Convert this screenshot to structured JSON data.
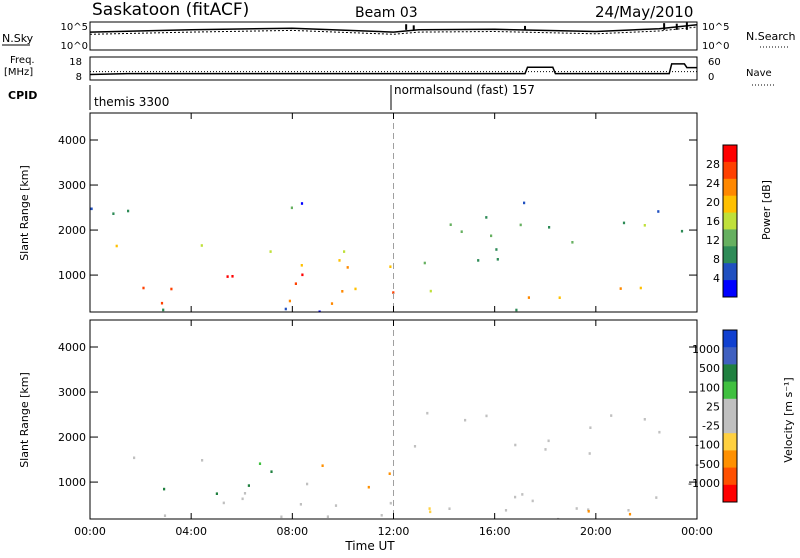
{
  "header": {
    "station": "Saskatoon (fitACF)",
    "beam": "Beam 03",
    "date": "24/May/2010"
  },
  "colors": {
    "power_scale": [
      "#0000ff",
      "#2050c0",
      "#2e8b57",
      "#66b060",
      "#bfe03a",
      "#ffc000",
      "#ff8800",
      "#ff4000",
      "#ff0000"
    ],
    "velocity_scale": [
      "#1040d0",
      "#4060c0",
      "#208040",
      "#40c040",
      "#c0c0c0",
      "#c0c0c0",
      "#ffd040",
      "#ff9000",
      "#ff5000",
      "#ff0000"
    ],
    "marker_line": "#a0a0a0"
  },
  "panels": {
    "sky": {
      "label_left": "N.Sky",
      "label_right": "N.Search",
      "left_ticks": [
        "10^5",
        "10^0"
      ],
      "right_ticks": [
        "10^5",
        "10^0"
      ]
    },
    "freq": {
      "label_left_1": "Freq.",
      "label_left_2": "[MHz]",
      "label_right": "Nave",
      "left_ticks": [
        "18",
        "8"
      ],
      "right_ticks": [
        "60",
        "0"
      ]
    },
    "cpid": {
      "label": "CPID",
      "modes": [
        "themis 3300",
        "normalsound (fast) 157"
      ]
    },
    "power": {
      "colorbar_label": "Power [dB]",
      "colorbar_ticks": [
        "28",
        "24",
        "20",
        "16",
        "12",
        "8",
        "4"
      ]
    },
    "velocity": {
      "colorbar_label": "Velocity [m s⁻¹]",
      "colorbar_ticks": [
        "1000",
        "500",
        "100",
        "25",
        "-25",
        "-100",
        "-500",
        "-1000"
      ]
    }
  },
  "chart_data": {
    "type": "heatmap",
    "title": "Saskatoon (fitACF)",
    "xlabel": "Time UT",
    "ylabel": "Slant Range [km]",
    "x_tick_labels": [
      "00:00",
      "04:00",
      "08:00",
      "12:00",
      "16:00",
      "20:00",
      "00:00"
    ],
    "x_range_hours": [
      0,
      24
    ],
    "y_tick_labels": [
      "1000",
      "2000",
      "3000",
      "4000"
    ],
    "y_range_km": [
      180,
      4600
    ],
    "mode_change_hour": 12,
    "power_range_db": [
      0,
      30
    ],
    "velocity_levels": [
      -1000,
      -500,
      -100,
      -25,
      25,
      100,
      500,
      1000
    ],
    "power_regions": [
      {
        "t0": 0.0,
        "t1": 12.0,
        "r0": 300,
        "r1": 800,
        "db": 22
      },
      {
        "t0": 2.0,
        "t1": 4.5,
        "r0": 500,
        "r1": 800,
        "db": 26
      },
      {
        "t0": 4.0,
        "t1": 9.0,
        "r0": 700,
        "r1": 1500,
        "db": 28
      },
      {
        "t0": 0.0,
        "t1": 4.5,
        "r0": 1500,
        "r1": 1900,
        "db": 14
      },
      {
        "t0": 4.5,
        "t1": 11.0,
        "r0": 1200,
        "r1": 1700,
        "db": 18
      },
      {
        "t0": 9.0,
        "t1": 12.0,
        "r0": 1000,
        "r1": 1500,
        "db": 24
      },
      {
        "t0": 0.0,
        "t1": 3.5,
        "r0": 2300,
        "r1": 3000,
        "db": 6
      },
      {
        "t0": 6.5,
        "t1": 9.5,
        "r0": 2200,
        "r1": 2800,
        "db": 8
      },
      {
        "t0": 12.0,
        "t1": 16.0,
        "r0": 1700,
        "r1": 2700,
        "db": 12
      },
      {
        "t0": 12.3,
        "t1": 17.0,
        "r0": 900,
        "r1": 1600,
        "db": 9
      },
      {
        "t0": 13.0,
        "t1": 18.0,
        "r0": 300,
        "r1": 700,
        "db": 20
      },
      {
        "t0": 16.5,
        "t1": 18.5,
        "r0": 1600,
        "r1": 2800,
        "db": 8
      },
      {
        "t0": 19.0,
        "t1": 22.5,
        "r0": 1500,
        "r1": 2300,
        "db": 11
      },
      {
        "t0": 18.5,
        "t1": 23.5,
        "r0": 400,
        "r1": 900,
        "db": 17
      },
      {
        "t0": 22.0,
        "t1": 24.0,
        "r0": 1900,
        "r1": 2700,
        "db": 6
      },
      {
        "t0": 0.0,
        "t1": 24.0,
        "r0": 180,
        "r1": 320,
        "db": 5
      }
    ],
    "velocity_regions": [
      {
        "t0": 0.0,
        "t1": 24.0,
        "r0": 180,
        "r1": 1000,
        "v": 0
      },
      {
        "t0": 0.0,
        "t1": 4.5,
        "r0": 1500,
        "r1": 1900,
        "v": 0
      },
      {
        "t0": 2.0,
        "t1": 5.0,
        "r0": 300,
        "r1": 900,
        "v": 150
      },
      {
        "t0": 4.0,
        "t1": 8.0,
        "r0": 900,
        "r1": 1500,
        "v": 100
      },
      {
        "t0": 8.0,
        "t1": 12.0,
        "r0": 900,
        "r1": 1500,
        "v": -300
      },
      {
        "t0": 12.0,
        "t1": 16.0,
        "r0": 1700,
        "r1": 2700,
        "v": 0
      },
      {
        "t0": 16.5,
        "t1": 23.0,
        "r0": 1600,
        "r1": 2600,
        "v": 0
      },
      {
        "t0": 12.0,
        "t1": 24.0,
        "r0": 180,
        "r1": 500,
        "v": -60
      },
      {
        "t0": 22.0,
        "t1": 24.0,
        "r0": 2000,
        "r1": 2700,
        "v": 0
      }
    ],
    "n_sky_profile": [
      [
        0,
        3.2
      ],
      [
        4,
        3.6
      ],
      [
        8,
        3.9
      ],
      [
        12,
        3.2
      ],
      [
        13,
        3.6
      ],
      [
        16,
        3.7
      ],
      [
        20,
        3.3
      ],
      [
        22.5,
        3.8
      ],
      [
        24,
        4.5
      ]
    ],
    "freq_profile": [
      [
        0,
        10.4
      ],
      [
        1.5,
        10.8
      ],
      [
        17.2,
        10.8
      ],
      [
        17.3,
        13.5
      ],
      [
        18.3,
        13.5
      ],
      [
        18.4,
        10.8
      ],
      [
        22.9,
        10.8
      ],
      [
        23.0,
        15.0
      ],
      [
        23.5,
        15.0
      ],
      [
        23.6,
        13.4
      ],
      [
        24,
        13.4
      ]
    ],
    "nave_profile": [
      [
        0,
        22
      ],
      [
        24,
        22
      ]
    ]
  }
}
